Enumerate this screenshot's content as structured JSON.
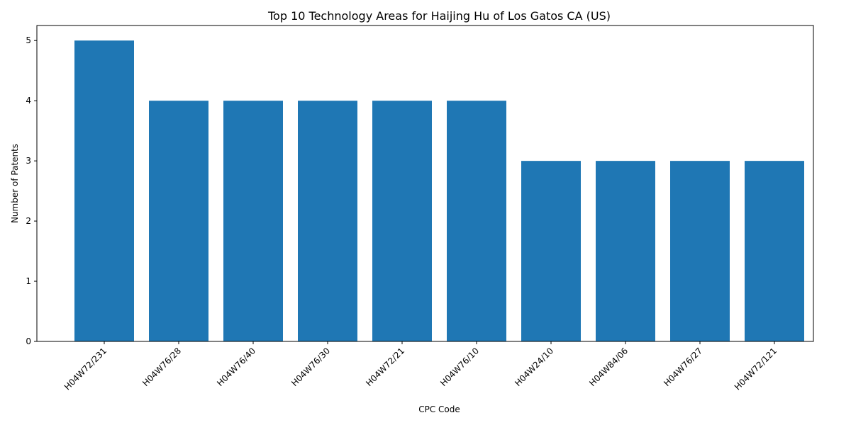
{
  "chart_data": {
    "type": "bar",
    "title": "Top 10 Technology Areas for Haijing Hu of Los Gatos CA (US)",
    "xlabel": "CPC Code",
    "ylabel": "Number of Patents",
    "categories": [
      "H04W72/231",
      "H04W76/28",
      "H04W76/40",
      "H04W76/30",
      "H04W72/21",
      "H04W76/10",
      "H04W24/10",
      "H04W84/06",
      "H04W76/27",
      "H04W72/121"
    ],
    "values": [
      5,
      4,
      4,
      4,
      4,
      4,
      3,
      3,
      3,
      3
    ],
    "ylim": [
      0,
      5.25
    ],
    "yticks": [
      0,
      1,
      2,
      3,
      4,
      5
    ],
    "bar_color": "#1f77b4",
    "grid": false,
    "legend": "none"
  }
}
